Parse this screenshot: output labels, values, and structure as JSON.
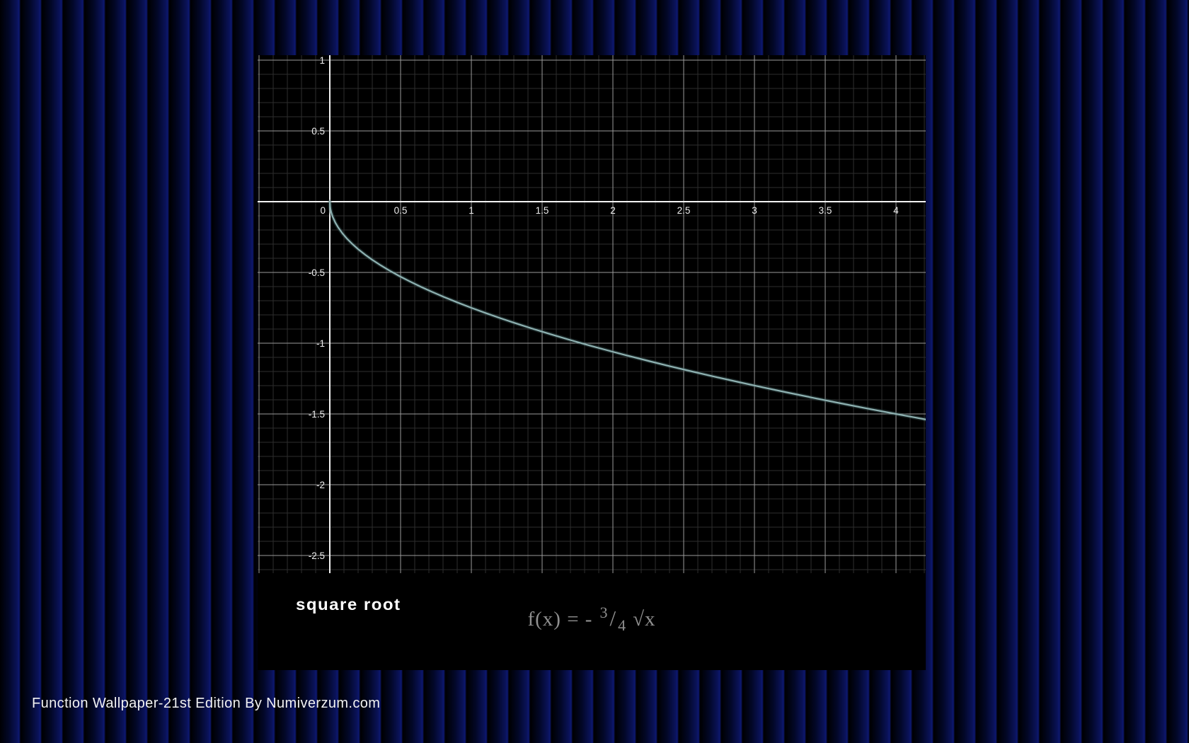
{
  "wallpaper": {
    "caption": "Function Wallpaper-21st Edition By Numiverzum.com"
  },
  "function_label": "square root",
  "formula": {
    "lhs": "f(x) = -",
    "numerator": "3",
    "slash": "/",
    "denominator": "4",
    "radicand": "√x",
    "plain": "f(x) = -3/4 √x"
  },
  "colors": {
    "stripe_navy": "#0d1870",
    "panel_bg": "#000000",
    "grid_minor": "#2e2e2e",
    "grid_major": "#9a9a9a",
    "axis": "#f2f2f2",
    "label": "#ededed",
    "curve": "#8fb2b2",
    "curve_glow": "#3c5a5a",
    "formula_text": "#8f8f8f",
    "caption_text": "#f2f2f2"
  },
  "chart_data": {
    "type": "line",
    "title": "square root",
    "formula": "f(x) = -(3/4)·√x",
    "xlabel": "",
    "ylabel": "",
    "grid": true,
    "legend": "none",
    "xlim": [
      -0.51,
      4.21
    ],
    "ylim": [
      -2.625,
      1.035
    ],
    "major_step": 0.5,
    "minor_step": 0.1,
    "x_ticks": [
      0,
      0.5,
      1,
      1.5,
      2,
      2.5,
      3,
      3.5,
      4
    ],
    "y_ticks": [
      1,
      0.5,
      0,
      -0.5,
      -1,
      -1.5,
      -2,
      -2.5
    ],
    "series": [
      {
        "name": "f(x) = -3/4·√x",
        "points": [
          [
            0,
            0
          ],
          [
            0.002,
            -0.0335
          ],
          [
            0.005,
            -0.053
          ],
          [
            0.01,
            -0.075
          ],
          [
            0.02,
            -0.1061
          ],
          [
            0.04,
            -0.15
          ],
          [
            0.06,
            -0.1837
          ],
          [
            0.09,
            -0.225
          ],
          [
            0.12,
            -0.2598
          ],
          [
            0.16,
            -0.3
          ],
          [
            0.2,
            -0.3354
          ],
          [
            0.25,
            -0.375
          ],
          [
            0.3,
            -0.4108
          ],
          [
            0.36,
            -0.45
          ],
          [
            0.42,
            -0.4861
          ],
          [
            0.49,
            -0.525
          ],
          [
            0.56,
            -0.5612
          ],
          [
            0.64,
            -0.6
          ],
          [
            0.72,
            -0.6364
          ],
          [
            0.81,
            -0.675
          ],
          [
            0.9,
            -0.7115
          ],
          [
            1,
            -0.75
          ],
          [
            1.1,
            -0.7866
          ],
          [
            1.21,
            -0.825
          ],
          [
            1.32,
            -0.8617
          ],
          [
            1.44,
            -0.9
          ],
          [
            1.56,
            -0.9367
          ],
          [
            1.69,
            -0.975
          ],
          [
            1.82,
            -1.0119
          ],
          [
            1.96,
            -1.05
          ],
          [
            2.1,
            -1.0869
          ],
          [
            2.25,
            -1.125
          ],
          [
            2.4,
            -1.1619
          ],
          [
            2.56,
            -1.2
          ],
          [
            2.72,
            -1.2369
          ],
          [
            2.89,
            -1.275
          ],
          [
            3.06,
            -1.3119
          ],
          [
            3.24,
            -1.35
          ],
          [
            3.42,
            -1.3872
          ],
          [
            3.61,
            -1.425
          ],
          [
            3.8,
            -1.462
          ],
          [
            4,
            -1.5
          ],
          [
            4.1,
            -1.5187
          ],
          [
            4.21,
            -1.5389
          ]
        ]
      }
    ]
  }
}
